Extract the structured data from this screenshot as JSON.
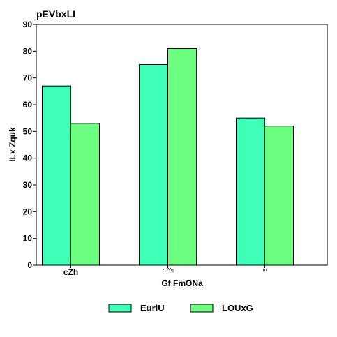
{
  "chart_data": {
    "type": "bar",
    "title": "pEVbxLI",
    "xlabel": "Gf FmONa",
    "ylabel": "ILx Zquk",
    "categories": [
      "cZh",
      "zUYq",
      "m"
    ],
    "series": [
      {
        "name": "EurlU",
        "color": "#3fffb8",
        "values": [
          67,
          75,
          55
        ]
      },
      {
        "name": "LOUxG",
        "color": "#6dff80",
        "values": [
          53,
          81,
          52
        ]
      }
    ],
    "ylim": [
      0,
      90
    ],
    "yticks": [
      0,
      10,
      20,
      30,
      40,
      50,
      60,
      70,
      80,
      90
    ],
    "grid": false,
    "legend_position": "bottom"
  }
}
